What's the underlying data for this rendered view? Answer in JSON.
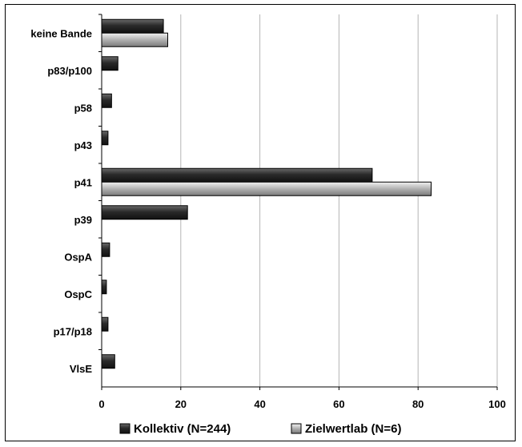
{
  "chart_data": {
    "type": "bar",
    "orientation": "horizontal",
    "categories": [
      "keine Bande",
      "p83/p100",
      "p58",
      "p43",
      "p41",
      "p39",
      "OspA",
      "OspC",
      "p17/p18",
      "VlsE"
    ],
    "series": [
      {
        "name": "Kollektiv (N=244)",
        "values": [
          15.6,
          4.1,
          2.5,
          1.6,
          68.4,
          21.7,
          2.0,
          1.2,
          1.6,
          3.3
        ],
        "color": "#2b2b2b"
      },
      {
        "name": "Zielwertlab (N=6)",
        "values": [
          16.7,
          null,
          null,
          null,
          83.3,
          null,
          null,
          null,
          null,
          null
        ],
        "color": "#b8b8b8"
      }
    ],
    "xlim": [
      0,
      100
    ],
    "xticks": [
      "0",
      "20",
      "40",
      "60",
      "80",
      "100"
    ],
    "xtick_values": [
      0,
      20,
      40,
      60,
      80,
      100
    ],
    "grid": true,
    "legend_position": "bottom",
    "title": "",
    "xlabel": "",
    "ylabel": ""
  }
}
